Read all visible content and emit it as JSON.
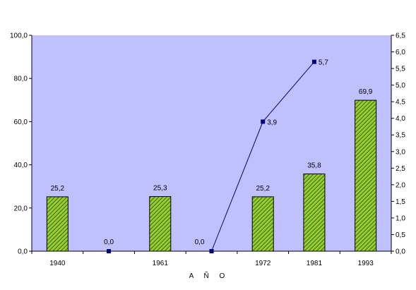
{
  "chart_data": {
    "type": "bar",
    "categories": [
      "1940",
      "",
      "1961",
      "",
      "1972",
      "1981",
      "1993"
    ],
    "series": [
      {
        "type": "bar",
        "axis": "left",
        "values": [
          25.2,
          0.0,
          25.3,
          0.0,
          25.2,
          35.8,
          69.9
        ],
        "labels": [
          "25,2",
          "0,0",
          "25,3",
          "0,0",
          "25,2",
          "35,8",
          "69,9"
        ],
        "color": "#9acd32",
        "pattern": "diagonal-hatch"
      },
      {
        "type": "line",
        "axis": "right",
        "values": [
          null,
          null,
          null,
          0.0,
          3.9,
          5.7,
          null
        ],
        "labels": [
          "",
          "",
          "",
          "",
          "3,9",
          "5,7",
          ""
        ],
        "color": "#00007b",
        "marker": "square"
      }
    ],
    "xlabel": "A Ñ O",
    "ylim": [
      0,
      100
    ],
    "y_ticks": [
      "0,0",
      "20,0",
      "40,0",
      "60,0",
      "80,0",
      "100,0"
    ],
    "y2lim": [
      0,
      6.5
    ],
    "y2_ticks": [
      "0,0",
      "0,5",
      "1,0",
      "1,5",
      "2,0",
      "2,5",
      "3,0",
      "3,5",
      "4,0",
      "4,5",
      "5,0",
      "5,5",
      "6,0",
      "6,5"
    ],
    "plot_background": "#c0c0ff",
    "grid": false,
    "legend": "none"
  }
}
